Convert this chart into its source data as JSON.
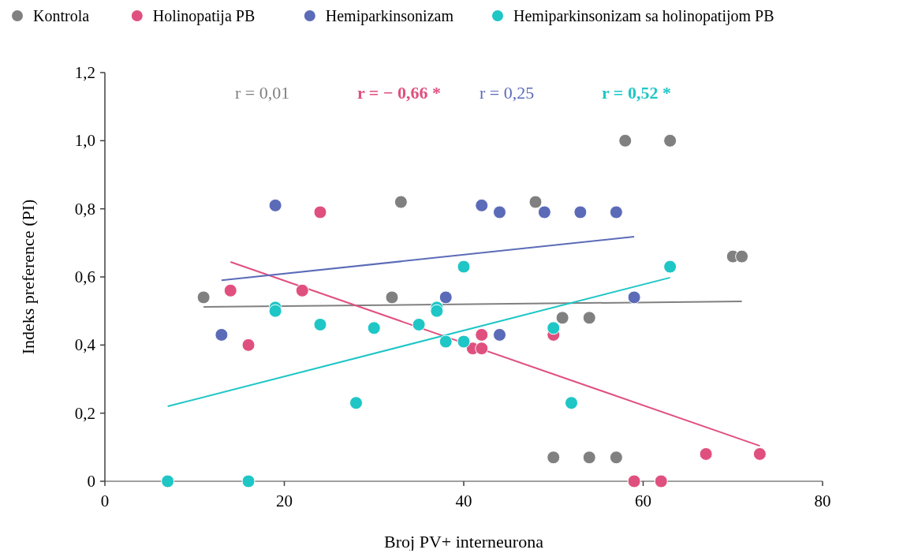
{
  "chart_data": {
    "type": "scatter",
    "xlabel": "Broj PV+ interneurona",
    "ylabel": "Indeks preference  (PI)",
    "xlim": [
      0,
      80
    ],
    "xticks": [
      0,
      20,
      40,
      60,
      80
    ],
    "ylim": [
      0,
      1.2
    ],
    "yticks": [
      0,
      {
        "value": 0.2,
        "label": "0,2"
      },
      {
        "value": 0.4,
        "label": "0,4"
      },
      {
        "value": 0.6,
        "label": "0,6"
      },
      {
        "value": 0.8,
        "label": "0,8"
      },
      {
        "value": 1.0,
        "label": "1,0"
      },
      {
        "value": 1.2,
        "label": "1,2"
      }
    ],
    "grid": false,
    "legend": "top",
    "marker": "circle",
    "annotations": [
      "r = 0,01",
      "r =  − 0,66 *",
      "r = 0,25",
      "r = 0,52 *"
    ],
    "series": [
      {
        "type": "line",
        "marker": "none",
        "color": "#808080",
        "x": [
          11,
          71
        ],
        "values": [
          0.512,
          0.528
        ]
      },
      {
        "type": "line",
        "marker": "none",
        "color": "#e0507f",
        "x": [
          14,
          73
        ],
        "values": [
          0.644,
          0.104
        ]
      },
      {
        "type": "line",
        "marker": "none",
        "color": "#5b6bb8",
        "x": [
          13,
          59
        ],
        "values": [
          0.59,
          0.718
        ]
      },
      {
        "type": "line",
        "marker": "none",
        "color": "#1fc6c6",
        "x": [
          7,
          63
        ],
        "values": [
          0.22,
          0.598
        ]
      },
      {
        "name": "Kontrola",
        "color": "#808080",
        "x": [
          11,
          33,
          32,
          48,
          58,
          63,
          70,
          71,
          51,
          54,
          50,
          54,
          57
        ],
        "values": [
          0.54,
          0.82,
          0.54,
          0.82,
          1.0,
          1.0,
          0.66,
          0.66,
          0.48,
          0.48,
          0.07,
          0.07,
          0.07
        ]
      },
      {
        "name": "Holinopatija PB",
        "color": "#e0507f",
        "x": [
          14,
          16,
          24,
          22,
          41,
          42,
          42,
          50,
          59,
          62,
          67,
          73
        ],
        "values": [
          0.56,
          0.4,
          0.79,
          0.56,
          0.39,
          0.43,
          0.39,
          0.43,
          0,
          0,
          0.08,
          0.08
        ]
      },
      {
        "name": "Hemiparkinsonizam",
        "color": "#5b6bb8",
        "x": [
          13,
          19,
          38,
          42,
          44,
          44,
          49,
          53,
          57,
          59
        ],
        "values": [
          0.43,
          0.81,
          0.54,
          0.81,
          0.79,
          0.43,
          0.79,
          0.79,
          0.79,
          0.54
        ]
      },
      {
        "name": "Hemiparkinsonizam sa holinopatijom PB",
        "color": "#1fc6c6",
        "x": [
          7,
          16,
          19,
          19,
          24,
          30,
          35,
          28,
          37,
          37,
          38,
          40,
          40,
          50,
          52,
          63
        ],
        "values": [
          0,
          0,
          0.51,
          0.5,
          0.46,
          0.45,
          0.46,
          0.23,
          0.51,
          0.5,
          0.41,
          0.41,
          0.63,
          0.45,
          0.23,
          0.63
        ]
      }
    ]
  }
}
